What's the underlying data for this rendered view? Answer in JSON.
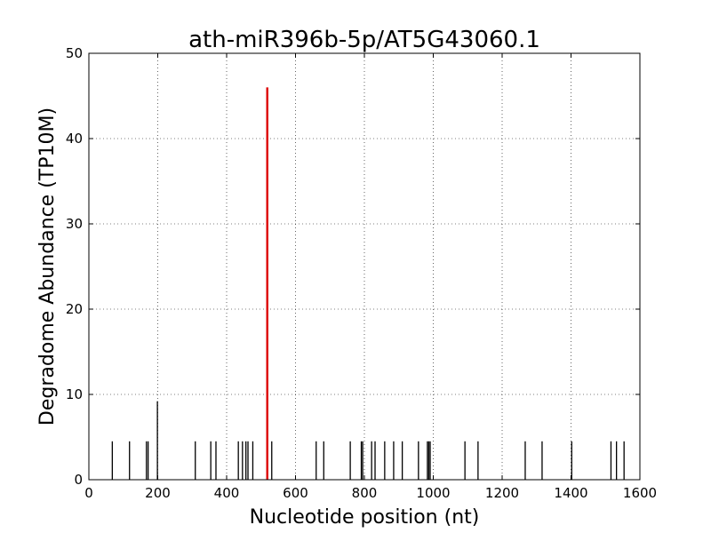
{
  "chart_data": {
    "type": "bar",
    "title": "ath-miR396b-5p/AT5G43060.1",
    "xlabel": "Nucleotide position (nt)",
    "ylabel": "Degradome Abundance (TP10M)",
    "xlim": [
      0,
      1600
    ],
    "ylim": [
      0,
      50
    ],
    "xticks": [
      0,
      200,
      400,
      600,
      800,
      1000,
      1200,
      1400,
      1600
    ],
    "yticks": [
      0,
      10,
      20,
      30,
      40,
      50
    ],
    "grid": true,
    "colors": {
      "series": "#000000",
      "target": "#dd0000"
    },
    "series": [
      {
        "values": [
          {
            "x": 68,
            "y": 4.5
          },
          {
            "x": 118,
            "y": 4.5
          },
          {
            "x": 167,
            "y": 4.5
          },
          {
            "x": 172,
            "y": 4.5
          },
          {
            "x": 199,
            "y": 9.2
          },
          {
            "x": 309,
            "y": 4.5
          },
          {
            "x": 354,
            "y": 4.5
          },
          {
            "x": 369,
            "y": 4.5
          },
          {
            "x": 434,
            "y": 4.5
          },
          {
            "x": 446,
            "y": 4.5
          },
          {
            "x": 456,
            "y": 4.5
          },
          {
            "x": 462,
            "y": 4.5
          },
          {
            "x": 476,
            "y": 4.5
          },
          {
            "x": 531,
            "y": 4.5
          },
          {
            "x": 660,
            "y": 4.5
          },
          {
            "x": 682,
            "y": 4.5
          },
          {
            "x": 759,
            "y": 4.5
          },
          {
            "x": 791,
            "y": 4.5
          },
          {
            "x": 795,
            "y": 4.5
          },
          {
            "x": 821,
            "y": 4.5
          },
          {
            "x": 831,
            "y": 4.5
          },
          {
            "x": 859,
            "y": 4.5
          },
          {
            "x": 885,
            "y": 4.5
          },
          {
            "x": 910,
            "y": 4.5
          },
          {
            "x": 957,
            "y": 4.5
          },
          {
            "x": 983,
            "y": 4.5
          },
          {
            "x": 987,
            "y": 4.5
          },
          {
            "x": 991,
            "y": 4.5
          },
          {
            "x": 1092,
            "y": 4.5
          },
          {
            "x": 1130,
            "y": 4.5
          },
          {
            "x": 1267,
            "y": 4.5
          },
          {
            "x": 1316,
            "y": 4.5
          },
          {
            "x": 1402,
            "y": 4.5
          },
          {
            "x": 1516,
            "y": 4.5
          },
          {
            "x": 1532,
            "y": 4.5
          },
          {
            "x": 1554,
            "y": 4.5
          }
        ]
      },
      {
        "values": [
          {
            "x": 518,
            "y": 46.0
          }
        ]
      }
    ]
  }
}
